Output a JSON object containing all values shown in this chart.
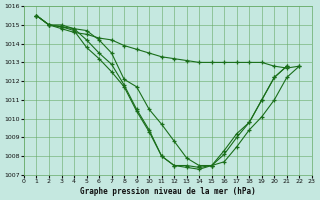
{
  "xlabel": "Graphe pression niveau de la mer (hPa)",
  "ylim": [
    1007,
    1016
  ],
  "xlim": [
    0,
    23
  ],
  "yticks": [
    1007,
    1008,
    1009,
    1010,
    1011,
    1012,
    1013,
    1014,
    1015,
    1016
  ],
  "xticks": [
    0,
    1,
    2,
    3,
    4,
    5,
    6,
    7,
    8,
    9,
    10,
    11,
    12,
    13,
    14,
    15,
    16,
    17,
    18,
    19,
    20,
    21,
    22,
    23
  ],
  "background_color": "#c5e8e0",
  "grid_color": "#66aa66",
  "line_color": "#1a6e1a",
  "lines": [
    {
      "x": [
        1,
        2,
        3,
        4,
        5,
        6,
        7,
        8,
        9,
        10,
        11,
        12,
        13,
        14,
        15,
        16,
        17,
        18,
        19,
        20,
        21,
        22
      ],
      "y": [
        1015.5,
        1015.0,
        1014.8,
        1014.6,
        1014.5,
        1014.3,
        1014.2,
        1013.9,
        1013.7,
        1013.5,
        1013.3,
        1013.2,
        1013.1,
        1013.0,
        1013.0,
        1013.0,
        1013.0,
        1013.0,
        1013.0,
        1012.8,
        1012.7,
        1012.8
      ]
    },
    {
      "x": [
        1,
        2,
        3,
        4,
        5,
        6,
        7,
        8,
        9,
        10,
        11,
        12,
        13,
        14,
        15,
        16,
        17,
        18,
        19,
        20,
        21
      ],
      "y": [
        1015.5,
        1015.0,
        1014.9,
        1014.8,
        1014.2,
        1013.5,
        1012.9,
        1011.8,
        1010.5,
        1009.4,
        1008.0,
        1007.5,
        1007.5,
        1007.4,
        1007.5,
        1008.1,
        1009.0,
        1009.8,
        1011.0,
        1012.2,
        1012.8
      ]
    },
    {
      "x": [
        1,
        2,
        3,
        4,
        5,
        6,
        7,
        8,
        9,
        10,
        11,
        12,
        13,
        14,
        15,
        16,
        17,
        18,
        19,
        20,
        21
      ],
      "y": [
        1015.5,
        1015.0,
        1014.9,
        1014.7,
        1013.8,
        1013.2,
        1012.5,
        1011.7,
        1010.4,
        1009.3,
        1008.0,
        1007.5,
        1007.4,
        1007.3,
        1007.5,
        1008.3,
        1009.2,
        1009.8,
        1011.0,
        1012.2,
        1012.8
      ]
    },
    {
      "x": [
        1,
        2,
        3,
        4,
        5,
        6,
        7,
        8,
        9,
        10,
        11,
        12,
        13,
        14,
        15,
        16,
        17,
        18,
        19,
        20,
        21,
        22
      ],
      "y": [
        1015.5,
        1015.0,
        1015.0,
        1014.8,
        1014.7,
        1014.2,
        1013.5,
        1012.1,
        1011.7,
        1010.5,
        1009.7,
        1008.8,
        1007.9,
        1007.5,
        1007.5,
        1007.7,
        1008.5,
        1009.4,
        1010.1,
        1011.0,
        1012.2,
        1012.8
      ]
    }
  ]
}
